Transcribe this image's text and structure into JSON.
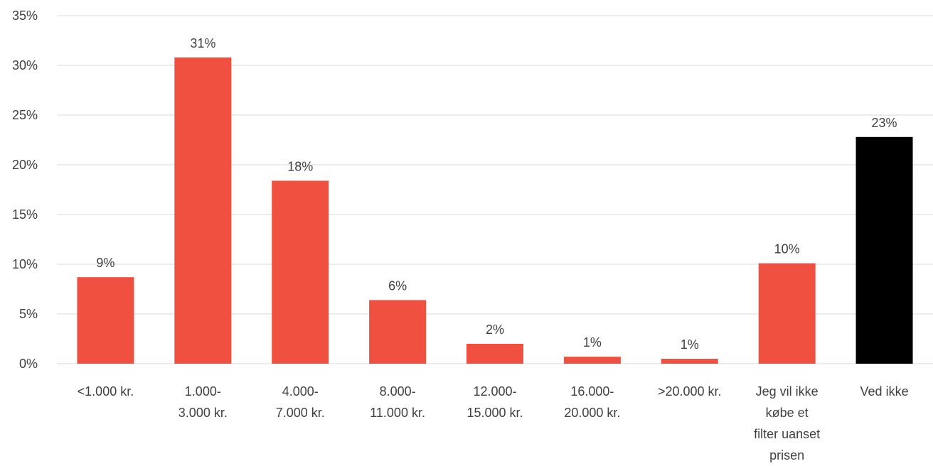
{
  "chart_data": {
    "type": "bar",
    "title": "",
    "xlabel": "",
    "ylabel": "",
    "categories": [
      "<1.000 kr.",
      "1.000-\n3.000 kr.",
      "4.000-\n7.000 kr.",
      "8.000-\n11.000 kr.",
      "12.000-\n15.000 kr.",
      "16.000-\n20.000 kr.",
      ">20.000 kr.",
      "Jeg vil ikke\nkøbe et\nfilter uanset\nprisen",
      "Ved ikke"
    ],
    "values": [
      8.7,
      30.8,
      18.4,
      6.4,
      2.0,
      0.7,
      0.5,
      10.1,
      22.8
    ],
    "data_labels": [
      "9%",
      "31%",
      "18%",
      "6%",
      "2%",
      "1%",
      "1%",
      "10%",
      "23%"
    ],
    "colors": [
      "#f05040",
      "#f05040",
      "#f05040",
      "#f05040",
      "#f05040",
      "#f05040",
      "#f05040",
      "#f05040",
      "#000000"
    ],
    "ylim": [
      0,
      35
    ],
    "yticks": [
      0,
      5,
      10,
      15,
      20,
      25,
      30,
      35
    ],
    "ytick_labels": [
      "0%",
      "5%",
      "10%",
      "15%",
      "20%",
      "25%",
      "30%",
      "35%"
    ],
    "grid": true,
    "legend": "none"
  }
}
